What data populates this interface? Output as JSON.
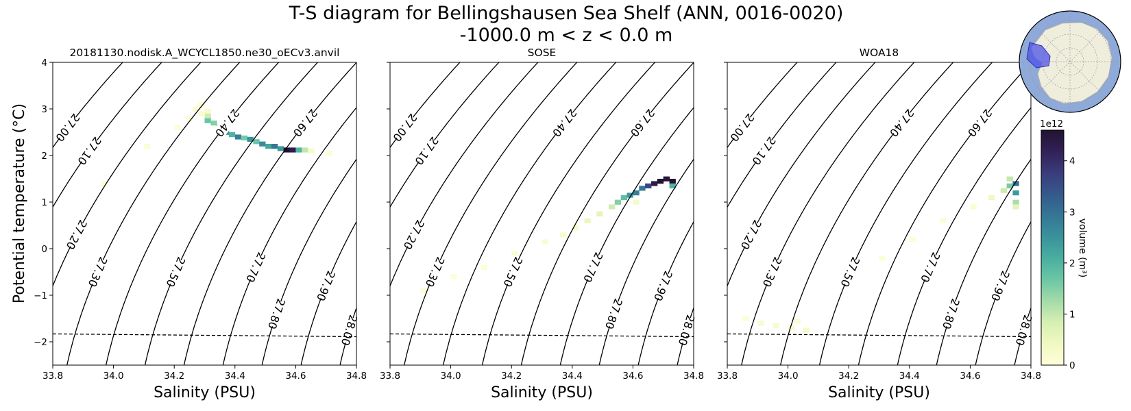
{
  "title_line1": "T-S diagram for Bellingshausen Sea Shelf (ANN, 0016-0020)",
  "title_line2": "-1000.0 m < z < 0.0 m",
  "ylabel": "Potential temperature (°C)",
  "chart_data": {
    "type": "heatmap",
    "xlabel": "Salinity (PSU)",
    "xlim": [
      33.8,
      34.8
    ],
    "ylim": [
      -2.5,
      4
    ],
    "xticks": [
      "33.8",
      "34.0",
      "34.2",
      "34.4",
      "34.6",
      "34.8"
    ],
    "yticks": [
      "−2",
      "−1",
      "0",
      "1",
      "2",
      "3",
      "4"
    ],
    "freezing_line": [
      [
        33.8,
        -1.83
      ],
      [
        34.8,
        -1.89
      ]
    ],
    "contour_levels": [
      "27.00",
      "27.10",
      "27.20",
      "27.30",
      "27.40",
      "27.50",
      "27.60",
      "27.70",
      "27.80",
      "27.90",
      "28.00"
    ],
    "colorbar": {
      "label": "volume (m³)",
      "exponent": "1e12",
      "ticks": [
        "0",
        "1",
        "2",
        "3",
        "4"
      ],
      "vmin": 0,
      "vmax": 4.6,
      "colors": [
        "#fffed9",
        "#f1f8c2",
        "#d6efb3",
        "#a3dba8",
        "#6cc6a6",
        "#49ae9f",
        "#3a929c",
        "#357696",
        "#35598c",
        "#3a3c7c",
        "#322156",
        "#221330"
      ]
    },
    "panels": [
      {
        "title": "20181130.nodisk.A_WCYCL1850.ne30_oECv3.anvil",
        "bins": [
          {
            "s": 34.3,
            "t": 2.95,
            "v": 0.25
          },
          {
            "s": 34.3,
            "t": 2.85,
            "v": 0.9
          },
          {
            "s": 34.3,
            "t": 2.75,
            "v": 1.7
          },
          {
            "s": 34.32,
            "t": 2.7,
            "v": 1.5
          },
          {
            "s": 34.34,
            "t": 2.6,
            "v": 3.0
          },
          {
            "s": 34.36,
            "t": 2.5,
            "v": 2.6
          },
          {
            "s": 34.38,
            "t": 2.45,
            "v": 2.0
          },
          {
            "s": 34.4,
            "t": 2.4,
            "v": 2.8
          },
          {
            "s": 34.42,
            "t": 2.38,
            "v": 1.6
          },
          {
            "s": 34.44,
            "t": 2.35,
            "v": 2.5
          },
          {
            "s": 34.46,
            "t": 2.3,
            "v": 1.7
          },
          {
            "s": 34.48,
            "t": 2.25,
            "v": 2.6
          },
          {
            "s": 34.5,
            "t": 2.2,
            "v": 2.2
          },
          {
            "s": 34.52,
            "t": 2.2,
            "v": 2.9
          },
          {
            "s": 34.54,
            "t": 2.15,
            "v": 2.4
          },
          {
            "s": 34.56,
            "t": 2.12,
            "v": 4.6
          },
          {
            "s": 34.58,
            "t": 2.12,
            "v": 4.3
          },
          {
            "s": 34.6,
            "t": 2.12,
            "v": 2.0
          },
          {
            "s": 34.62,
            "t": 2.12,
            "v": 1.0
          },
          {
            "s": 34.64,
            "t": 2.1,
            "v": 0.3
          },
          {
            "s": 34.26,
            "t": 3.0,
            "v": 0.15
          },
          {
            "s": 34.28,
            "t": 3.1,
            "v": 0.1
          },
          {
            "s": 34.24,
            "t": 2.8,
            "v": 0.08
          },
          {
            "s": 34.2,
            "t": 2.6,
            "v": 0.06
          },
          {
            "s": 34.28,
            "t": 2.9,
            "v": 0.2
          },
          {
            "s": 34.7,
            "t": 2.05,
            "v": 0.1
          },
          {
            "s": 34.1,
            "t": 2.2,
            "v": 0.05
          },
          {
            "s": 33.96,
            "t": 1.4,
            "v": 0.05
          }
        ]
      },
      {
        "title": "SOSE",
        "bins": [
          {
            "s": 33.9,
            "t": -0.9,
            "v": 0.04
          },
          {
            "s": 34.0,
            "t": -0.6,
            "v": 0.05
          },
          {
            "s": 34.1,
            "t": -0.4,
            "v": 0.06
          },
          {
            "s": 34.2,
            "t": -0.1,
            "v": 0.08
          },
          {
            "s": 34.3,
            "t": 0.15,
            "v": 0.12
          },
          {
            "s": 34.36,
            "t": 0.3,
            "v": 0.2
          },
          {
            "s": 34.4,
            "t": 0.45,
            "v": 0.3
          },
          {
            "s": 34.44,
            "t": 0.6,
            "v": 0.5
          },
          {
            "s": 34.48,
            "t": 0.75,
            "v": 0.6
          },
          {
            "s": 34.52,
            "t": 0.9,
            "v": 0.9
          },
          {
            "s": 34.54,
            "t": 1.0,
            "v": 1.5
          },
          {
            "s": 34.56,
            "t": 1.1,
            "v": 1.8
          },
          {
            "s": 34.58,
            "t": 1.15,
            "v": 2.4
          },
          {
            "s": 34.6,
            "t": 1.2,
            "v": 2.8
          },
          {
            "s": 34.62,
            "t": 1.3,
            "v": 2.9
          },
          {
            "s": 34.64,
            "t": 1.35,
            "v": 3.6
          },
          {
            "s": 34.66,
            "t": 1.4,
            "v": 4.3
          },
          {
            "s": 34.68,
            "t": 1.45,
            "v": 4.6
          },
          {
            "s": 34.7,
            "t": 1.5,
            "v": 4.5
          },
          {
            "s": 34.72,
            "t": 1.45,
            "v": 4.6
          },
          {
            "s": 34.72,
            "t": 1.35,
            "v": 2.0
          },
          {
            "s": 34.6,
            "t": 1.0,
            "v": 0.3
          }
        ]
      },
      {
        "title": "WOA18",
        "bins": [
          {
            "s": 33.85,
            "t": -1.5,
            "v": 0.1
          },
          {
            "s": 33.9,
            "t": -1.6,
            "v": 0.2
          },
          {
            "s": 33.95,
            "t": -1.65,
            "v": 0.2
          },
          {
            "s": 34.0,
            "t": -1.7,
            "v": 0.25
          },
          {
            "s": 34.05,
            "t": -1.75,
            "v": 0.3
          },
          {
            "s": 34.02,
            "t": -1.55,
            "v": 0.15
          },
          {
            "s": 34.2,
            "t": -0.6,
            "v": 0.06
          },
          {
            "s": 34.3,
            "t": -0.2,
            "v": 0.05
          },
          {
            "s": 34.4,
            "t": 0.2,
            "v": 0.06
          },
          {
            "s": 34.5,
            "t": 0.6,
            "v": 0.1
          },
          {
            "s": 34.6,
            "t": 0.9,
            "v": 0.15
          },
          {
            "s": 34.66,
            "t": 1.1,
            "v": 0.4
          },
          {
            "s": 34.7,
            "t": 1.25,
            "v": 0.9
          },
          {
            "s": 34.72,
            "t": 1.35,
            "v": 1.6
          },
          {
            "s": 34.72,
            "t": 1.5,
            "v": 1.0
          },
          {
            "s": 34.74,
            "t": 1.4,
            "v": 3.0
          },
          {
            "s": 34.74,
            "t": 1.2,
            "v": 2.4
          },
          {
            "s": 34.74,
            "t": 1.0,
            "v": 1.2
          },
          {
            "s": 34.74,
            "t": 0.9,
            "v": 0.6
          }
        ]
      }
    ]
  }
}
